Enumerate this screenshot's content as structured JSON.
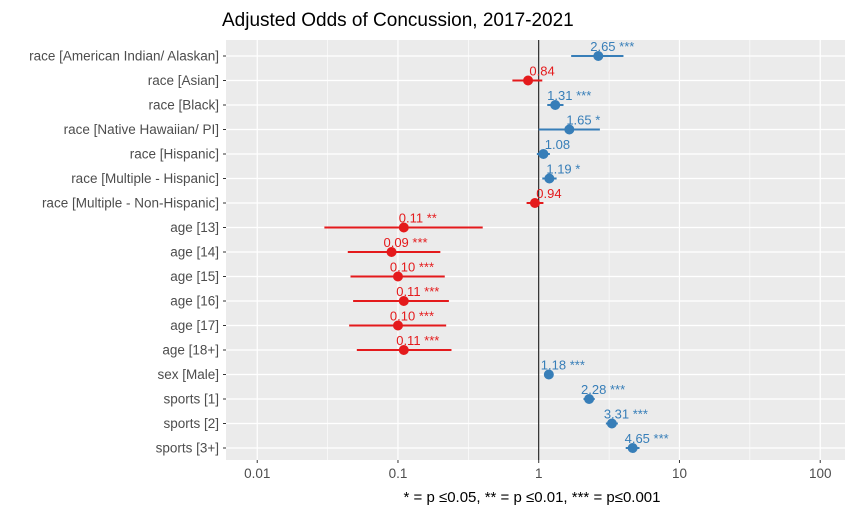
{
  "chart_data": {
    "type": "scatter",
    "subtype": "forest-plot",
    "title": "Adjusted Odds of Concussion, 2017-2021",
    "xlabel": "* = p ≤0.05, ** = p ≤0.01, *** = p≤0.001",
    "ylabel": "",
    "x_scale": "log10",
    "xlim": [
      0.006,
      150
    ],
    "x_ticks": [
      0.01,
      0.1,
      1,
      10,
      100
    ],
    "x_tick_labels": [
      "0.01",
      "0.1",
      "1",
      "10",
      "100"
    ],
    "reference_line": 1,
    "grid": true,
    "legend": "none",
    "colors": {
      "positive": "#377eb8",
      "negative": "#e41a1c",
      "panel": "#ebebeb",
      "grid": "#ffffff"
    },
    "terms": [
      {
        "label": "race [American Indian/ Alaskan]",
        "estimate": 2.65,
        "ci_low": 1.7,
        "ci_high": 4.0,
        "text": "2.65 ***"
      },
      {
        "label": "race [Asian]",
        "estimate": 0.84,
        "ci_low": 0.65,
        "ci_high": 1.06,
        "text": "0.84"
      },
      {
        "label": "race [Black]",
        "estimate": 1.31,
        "ci_low": 1.15,
        "ci_high": 1.5,
        "text": "1.31 ***"
      },
      {
        "label": "race [Native Hawaiian/ PI]",
        "estimate": 1.65,
        "ci_low": 1.0,
        "ci_high": 2.72,
        "text": "1.65 *"
      },
      {
        "label": "race [Hispanic]",
        "estimate": 1.08,
        "ci_low": 0.97,
        "ci_high": 1.2,
        "text": "1.08"
      },
      {
        "label": "race [Multiple - Hispanic]",
        "estimate": 1.19,
        "ci_low": 1.06,
        "ci_high": 1.34,
        "text": "1.19 *"
      },
      {
        "label": "race [Multiple - Non-Hispanic]",
        "estimate": 0.94,
        "ci_low": 0.82,
        "ci_high": 1.08,
        "text": "0.94"
      },
      {
        "label": "age [13]",
        "estimate": 0.11,
        "ci_low": 0.03,
        "ci_high": 0.4,
        "text": "0.11 **"
      },
      {
        "label": "age [14]",
        "estimate": 0.09,
        "ci_low": 0.044,
        "ci_high": 0.2,
        "text": "0.09 ***"
      },
      {
        "label": "age [15]",
        "estimate": 0.1,
        "ci_low": 0.046,
        "ci_high": 0.215,
        "text": "0.10 ***"
      },
      {
        "label": "age [16]",
        "estimate": 0.11,
        "ci_low": 0.048,
        "ci_high": 0.23,
        "text": "0.11 ***"
      },
      {
        "label": "age [17]",
        "estimate": 0.1,
        "ci_low": 0.045,
        "ci_high": 0.22,
        "text": "0.10 ***"
      },
      {
        "label": "age [18+]",
        "estimate": 0.11,
        "ci_low": 0.051,
        "ci_high": 0.24,
        "text": "0.11 ***"
      },
      {
        "label": "sex [Male]",
        "estimate": 1.18,
        "ci_low": 1.11,
        "ci_high": 1.26,
        "text": "1.18 ***"
      },
      {
        "label": "sports [1]",
        "estimate": 2.28,
        "ci_low": 2.08,
        "ci_high": 2.5,
        "text": "2.28 ***"
      },
      {
        "label": "sports [2]",
        "estimate": 3.31,
        "ci_low": 3.0,
        "ci_high": 3.65,
        "text": "3.31 ***"
      },
      {
        "label": "sports [3+]",
        "estimate": 4.65,
        "ci_low": 4.15,
        "ci_high": 5.2,
        "text": "4.65 ***"
      }
    ]
  }
}
